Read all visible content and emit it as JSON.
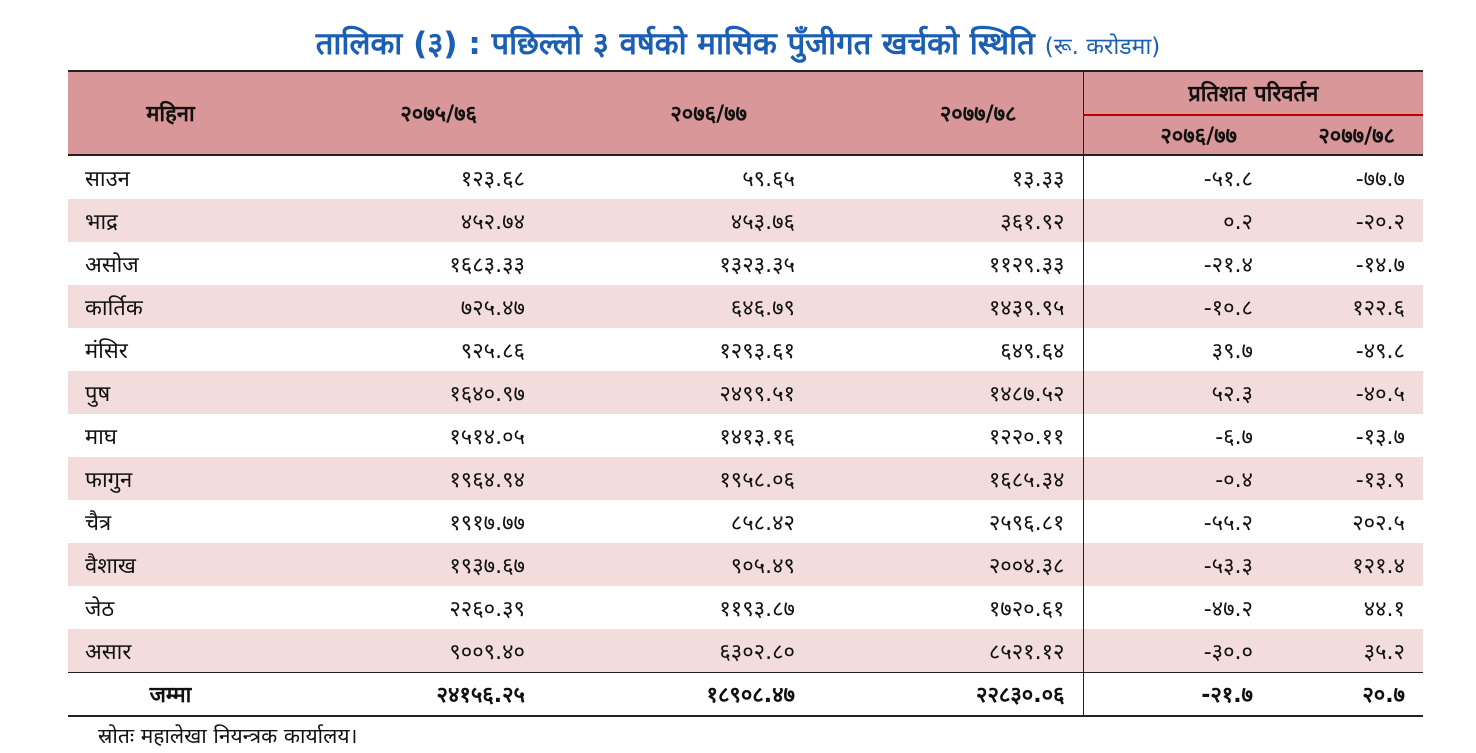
{
  "title": {
    "main": "तालिका (३) : पछिल्लो ३ वर्षको मासिक पुँजीगत खर्चको स्थिति",
    "unit": "(रू. करोडमा)"
  },
  "table": {
    "headers": {
      "month": "महिना",
      "y1": "२०७५/७६",
      "y2": "२०७६/७७",
      "y3": "२०७७/७८",
      "pct_change": "प्रतिशत परिवर्तन",
      "pct1": "२०७६/७७",
      "pct2": "२०७७/७८"
    },
    "rows": [
      {
        "month": "साउन",
        "y1": "१२३.६८",
        "y2": "५९.६५",
        "y3": "१३.३३",
        "p1": "-५१.८",
        "p2": "-७७.७"
      },
      {
        "month": "भाद्र",
        "y1": "४५२.७४",
        "y2": "४५३.७६",
        "y3": "३६१.९२",
        "p1": "०.२",
        "p2": "-२०.२"
      },
      {
        "month": "असोज",
        "y1": "१६८३.३३",
        "y2": "१३२३.३५",
        "y3": "११२९.३३",
        "p1": "-२१.४",
        "p2": "-१४.७"
      },
      {
        "month": "कार्तिक",
        "y1": "७२५.४७",
        "y2": "६४६.७९",
        "y3": "१४३९.९५",
        "p1": "-१०.८",
        "p2": "१२२.६"
      },
      {
        "month": "मंसिर",
        "y1": "९२५.८६",
        "y2": "१२९३.६१",
        "y3": "६४९.६४",
        "p1": "३९.७",
        "p2": "-४९.८"
      },
      {
        "month": "पुष",
        "y1": "१६४०.९७",
        "y2": "२४९९.५१",
        "y3": "१४८७.५२",
        "p1": "५२.३",
        "p2": "-४०.५"
      },
      {
        "month": "माघ",
        "y1": "१५१४.०५",
        "y2": "१४१३.१६",
        "y3": "१२२०.११",
        "p1": "-६.७",
        "p2": "-१३.७"
      },
      {
        "month": "फागुन",
        "y1": "१९६४.९४",
        "y2": "१९५८.०६",
        "y3": "१६८५.३४",
        "p1": "-०.४",
        "p2": "-१३.९"
      },
      {
        "month": "चैत्र",
        "y1": "१९१७.७७",
        "y2": "८५८.४२",
        "y3": "२५९६.८१",
        "p1": "-५५.२",
        "p2": "२०२.५"
      },
      {
        "month": "वैशाख",
        "y1": "१९३७.६७",
        "y2": "९०५.४९",
        "y3": "२००४.३८",
        "p1": "-५३.३",
        "p2": "१२१.४"
      },
      {
        "month": "जेठ",
        "y1": "२२६०.३९",
        "y2": "११९३.८७",
        "y3": "१७२०.६१",
        "p1": "-४७.२",
        "p2": "४४.१"
      },
      {
        "month": "असार",
        "y1": "९००९.४०",
        "y2": "६३०२.८०",
        "y3": "८५२१.१२",
        "p1": "-३०.०",
        "p2": "३५.२"
      }
    ],
    "total": {
      "month": "जम्मा",
      "y1": "२४१५६.२५",
      "y2": "१८९०८.४७",
      "y3": "२२८३०.०६",
      "p1": "-२१.७",
      "p2": "२०.७"
    }
  },
  "source": "स्रोतः महालेखा नियन्त्रक कार्यालय।",
  "colors": {
    "title": "#1a5fb4",
    "header_bg": "#d99799",
    "alt_row_bg": "#f2dcdc",
    "header_sub_line": "#c00000"
  }
}
